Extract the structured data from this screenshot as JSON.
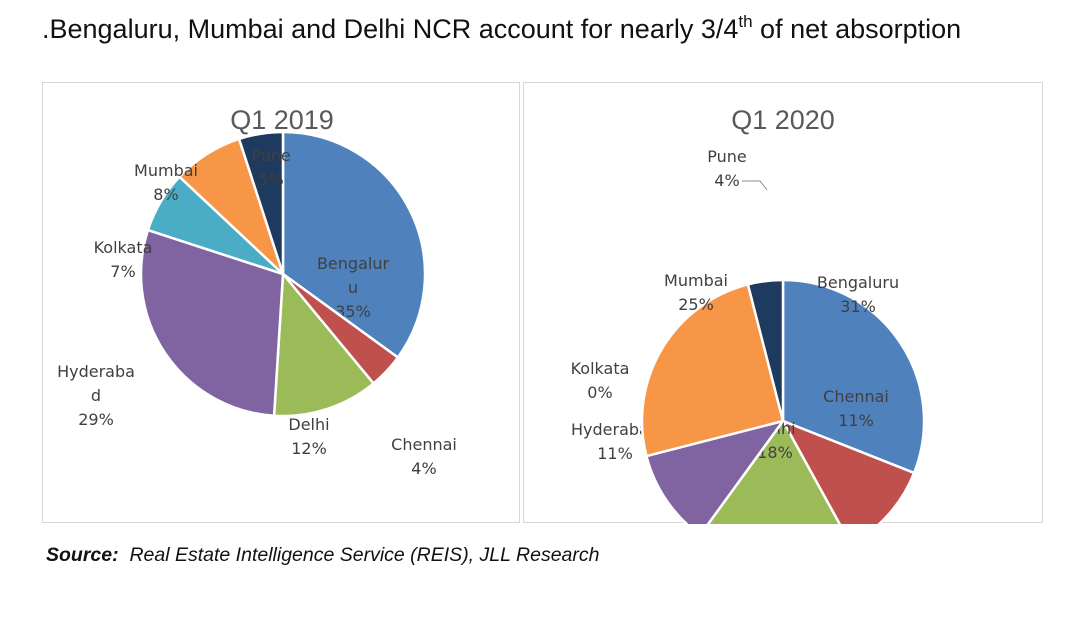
{
  "headline": {
    "text_before": ".Bengaluru, Mumbai and Delhi NCR account for nearly 3/4",
    "superscript": "th",
    "text_after": " of net absorption"
  },
  "source": {
    "label": "Source:",
    "text": "Real Estate Intelligence Service (REIS), JLL Research"
  },
  "chart_data": [
    {
      "type": "pie",
      "title": "Q1 2019",
      "slices": [
        {
          "label": "Bengaluru",
          "value": 35,
          "display": "35%",
          "color": "#4f81bd"
        },
        {
          "label": "Chennai",
          "value": 4,
          "display": "4%",
          "color": "#c0504d"
        },
        {
          "label": "Delhi",
          "value": 12,
          "display": "12%",
          "color": "#9bbb59"
        },
        {
          "label": "Hyderabad",
          "value": 29,
          "display": "29%",
          "color": "#8064a2"
        },
        {
          "label": "Kolkata",
          "value": 7,
          "display": "7%",
          "color": "#4bacc6"
        },
        {
          "label": "Mumbai",
          "value": 8,
          "display": "8%",
          "color": "#f79646"
        },
        {
          "label": "Pune",
          "value": 5,
          "display": "5%",
          "color": "#1f3a5f"
        }
      ]
    },
    {
      "type": "pie",
      "title": "Q1 2020",
      "slices": [
        {
          "label": "Bengaluru",
          "value": 31,
          "display": "31%",
          "color": "#4f81bd"
        },
        {
          "label": "Chennai",
          "value": 11,
          "display": "11%",
          "color": "#c0504d"
        },
        {
          "label": "Delhi",
          "value": 18,
          "display": "18%",
          "color": "#9bbb59"
        },
        {
          "label": "Hyderabad",
          "value": 11,
          "display": "11%",
          "color": "#8064a2"
        },
        {
          "label": "Kolkata",
          "value": 0,
          "display": "0%",
          "color": "#4bacc6"
        },
        {
          "label": "Mumbai",
          "value": 25,
          "display": "25%",
          "color": "#f79646"
        },
        {
          "label": "Pune",
          "value": 4,
          "display": "4%",
          "color": "#1f3a5f"
        }
      ]
    }
  ]
}
